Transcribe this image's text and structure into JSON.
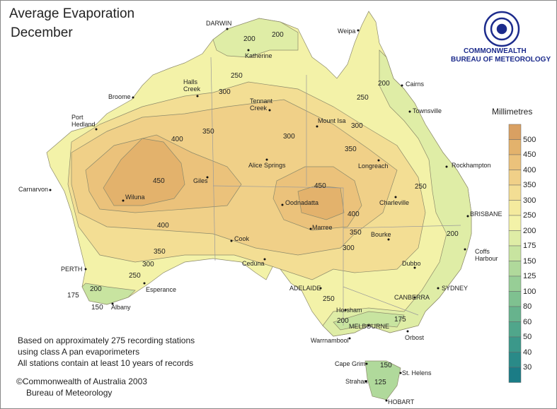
{
  "header": {
    "title": "Average Evaporation",
    "subtitle": "December"
  },
  "logo": {
    "line1": "COMMONWEALTH",
    "line2": "BUREAU OF METEOROLOGY"
  },
  "legend": {
    "title": "Millimetres",
    "levels": [
      500,
      450,
      400,
      350,
      300,
      250,
      200,
      175,
      150,
      125,
      100,
      80,
      60,
      50,
      40,
      30
    ],
    "band_colors": [
      "#d9a062",
      "#e3b26c",
      "#ebc27b",
      "#f0d088",
      "#f3de94",
      "#f4ea9e",
      "#f3f2a8",
      "#dfeda6",
      "#c8e4a0",
      "#b0d99b",
      "#97ce96",
      "#7fc190",
      "#67b38d",
      "#50a68b",
      "#3b988a",
      "#2a8a88",
      "#1b7c86"
    ]
  },
  "contour_labels": [
    200,
    200,
    250,
    300,
    350,
    400,
    450,
    300,
    350,
    300,
    250,
    200,
    450,
    400,
    350,
    300,
    250,
    200,
    400,
    350,
    300,
    250,
    200,
    175,
    150,
    250,
    200,
    175,
    150,
    125
  ],
  "cities": [
    "DARWIN",
    "Katherine",
    "Weipa",
    "Cairns",
    "Townsville",
    "Broome",
    "Halls Creek",
    "Tennant Creek",
    "Port Hedland",
    "Mount Isa",
    "Alice Springs",
    "Longreach",
    "Rockhampton",
    "Carnarvon",
    "Giles",
    "Wiluna",
    "Charleville",
    "Oodnadatta",
    "BRISBANE",
    "Marree",
    "Cook",
    "Bourke",
    "Coffs Harbour",
    "Dubbo",
    "Ceduna",
    "PERTH",
    "ADELAIDE",
    "Esperance",
    "SYDNEY",
    "CANBERRA",
    "Albany",
    "Horsham",
    "MELBOURNE",
    "Orbost",
    "Warrnambool",
    "Cape Grim",
    "St. Helens",
    "Strahan",
    "HOBART"
  ],
  "notes": {
    "lines": [
      "Based on approximately 275 recording stations",
      "using class A pan evaporimeters",
      "All stations contain at least 10 years of records"
    ],
    "copyright": "©Commonwealth of Australia 2003",
    "copyright2": "Bureau of Meteorology"
  }
}
